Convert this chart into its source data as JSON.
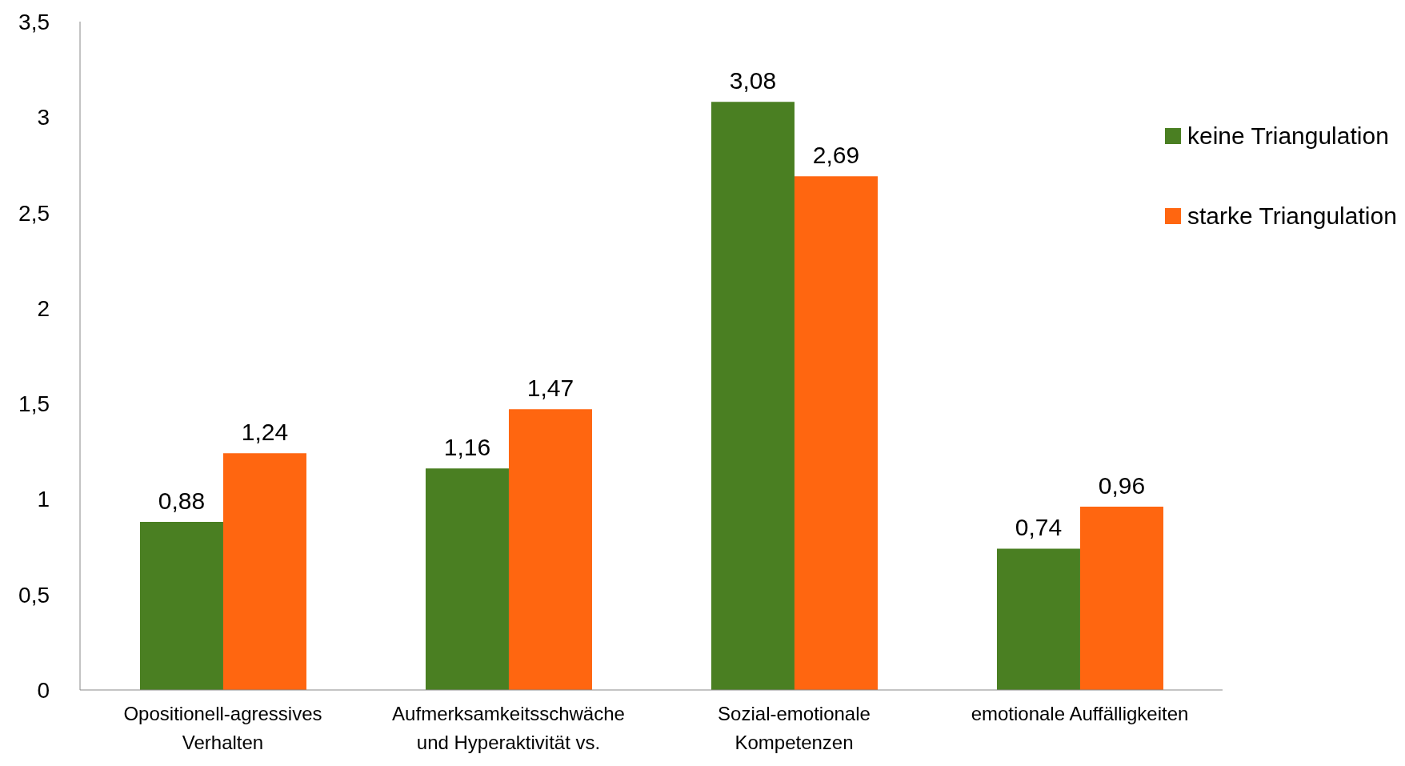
{
  "chart_data": {
    "type": "bar",
    "categories": [
      "Opositionell-agressives Verhalten",
      "Aufmerksamkeitsschwäche und Hyperaktivität vs.",
      "Sozial-emotionale Kompetenzen",
      "emotionale Auffälligkeiten"
    ],
    "series": [
      {
        "name": "keine Triangulation",
        "color": "#4a7f22",
        "values": [
          0.88,
          1.16,
          3.08,
          0.74
        ],
        "value_labels": [
          "0,88",
          "1,16",
          "3,08",
          "0,74"
        ]
      },
      {
        "name": "starke Triangulation",
        "color": "#ff6610",
        "values": [
          1.24,
          1.47,
          2.69,
          0.96
        ],
        "value_labels": [
          "1,24",
          "1,47",
          "2,69",
          "0,96"
        ]
      }
    ],
    "ylim": [
      0,
      3.5
    ],
    "yticks": [
      {
        "value": 0,
        "label": "0"
      },
      {
        "value": 0.5,
        "label": "0,5"
      },
      {
        "value": 1,
        "label": "1"
      },
      {
        "value": 1.5,
        "label": "1,5"
      },
      {
        "value": 2,
        "label": "2"
      },
      {
        "value": 2.5,
        "label": "2,5"
      },
      {
        "value": 3,
        "label": "3"
      },
      {
        "value": 3.5,
        "label": "3,5"
      }
    ],
    "grid": false,
    "legend": "top right"
  }
}
